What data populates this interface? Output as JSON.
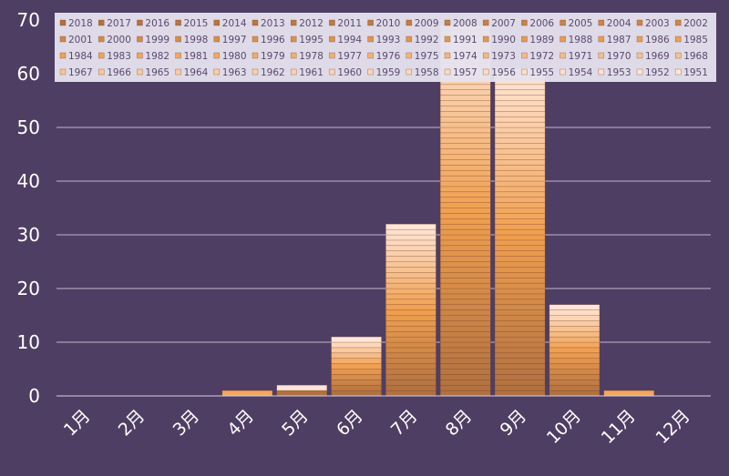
{
  "chart_data": {
    "type": "bar",
    "stacked": true,
    "categories": [
      "1月",
      "2月",
      "3月",
      "4月",
      "5月",
      "6月",
      "7月",
      "8月",
      "9月",
      "10月",
      "11月",
      "12月"
    ],
    "totals": [
      0,
      0,
      0,
      1,
      2,
      11,
      32,
      69,
      61,
      17,
      1,
      0
    ],
    "ylim": [
      0,
      70
    ],
    "yticks": [
      0,
      10,
      20,
      30,
      40,
      50,
      60,
      70
    ],
    "grid": true,
    "legend_position": "top",
    "legend_entries": [
      "2018",
      "2017",
      "2016",
      "2015",
      "2014",
      "2013",
      "2012",
      "2011",
      "2010",
      "2009",
      "2008",
      "2007",
      "2006",
      "2005",
      "2004",
      "2003",
      "2002",
      "2001",
      "2000",
      "1999",
      "1998",
      "1997",
      "1996",
      "1995",
      "1994",
      "1993",
      "1992",
      "1991",
      "1990",
      "1989",
      "1988",
      "1987",
      "1986",
      "1985",
      "1984",
      "1983",
      "1982",
      "1981",
      "1980",
      "1979",
      "1978",
      "1977",
      "1976",
      "1975",
      "1974",
      "1973",
      "1972",
      "1971",
      "1970",
      "1969",
      "1968",
      "1967",
      "1966",
      "1965",
      "1964",
      "1963",
      "1962",
      "1961",
      "1960",
      "1959",
      "1958",
      "1957",
      "1956",
      "1955",
      "1954",
      "1953",
      "1952",
      "1951"
    ],
    "colors": {
      "background": "#4f3e63",
      "series_dark": "#b07040",
      "series_mid": "#f0a050",
      "series_light": "#ffe6d6",
      "legend_bg": "#e6e3ee",
      "gridline": "#bfb5cc",
      "text": "#ffffff"
    }
  }
}
